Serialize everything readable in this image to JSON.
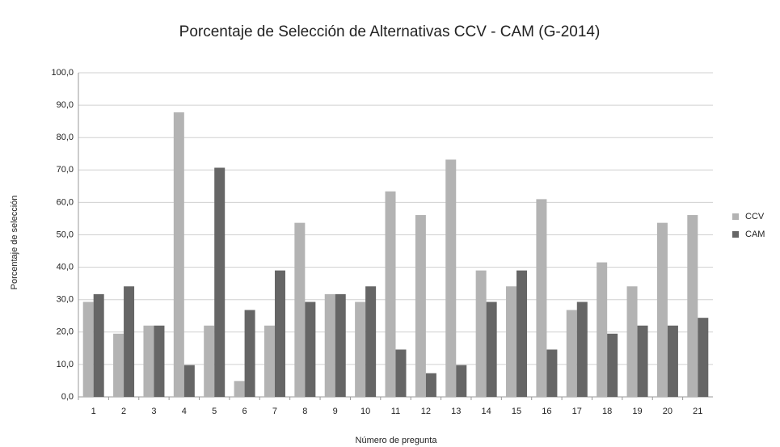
{
  "chart_data": {
    "type": "bar",
    "title": "Porcentaje de Selección de Alternativas CCV - CAM (G-2014)",
    "x_label": "Número de pregunta",
    "y_label": "Porcentaje de selección",
    "categories": [
      "1",
      "2",
      "3",
      "4",
      "5",
      "6",
      "7",
      "8",
      "9",
      "10",
      "11",
      "12",
      "13",
      "14",
      "15",
      "16",
      "17",
      "18",
      "19",
      "20",
      "21"
    ],
    "series": [
      {
        "name": "CCV",
        "color": "#b3b3b3",
        "values": [
          29.3,
          19.5,
          22.0,
          87.8,
          22.0,
          4.9,
          22.0,
          53.7,
          31.7,
          29.3,
          63.4,
          56.1,
          73.2,
          39.0,
          34.1,
          61.0,
          26.8,
          41.5,
          34.1,
          53.7,
          56.1
        ]
      },
      {
        "name": "CAM",
        "color": "#666666",
        "values": [
          31.7,
          34.1,
          22.0,
          9.8,
          70.7,
          26.8,
          39.0,
          29.3,
          31.7,
          34.1,
          14.6,
          7.3,
          9.8,
          29.3,
          39.0,
          14.6,
          29.3,
          19.5,
          22.0,
          22.0,
          24.4
        ]
      }
    ],
    "ylim": [
      0,
      100
    ],
    "yticks": [
      {
        "value": 0,
        "label": "0,0"
      },
      {
        "value": 10,
        "label": "10,0"
      },
      {
        "value": 20,
        "label": "20,0"
      },
      {
        "value": 30,
        "label": "30,0"
      },
      {
        "value": 40,
        "label": "40,0"
      },
      {
        "value": 50,
        "label": "50,0"
      },
      {
        "value": 60,
        "label": "60,0"
      },
      {
        "value": 70,
        "label": "70,0"
      },
      {
        "value": 80,
        "label": "80,0"
      },
      {
        "value": 90,
        "label": "90,0"
      },
      {
        "value": 100,
        "label": "100,0"
      }
    ],
    "grid": true,
    "legend": "right"
  }
}
